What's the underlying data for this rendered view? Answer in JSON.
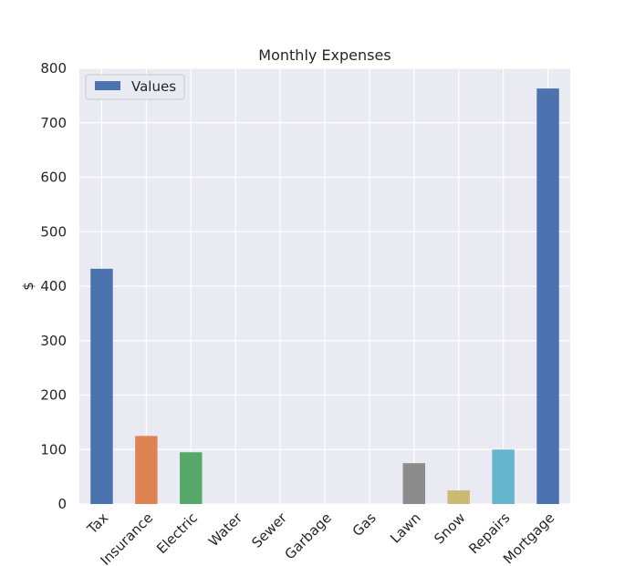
{
  "chart_data": {
    "type": "bar",
    "title": "Monthly Expenses",
    "xlabel": "",
    "ylabel": "$",
    "categories": [
      "Tax",
      "Insurance",
      "Electric",
      "Water",
      "Sewer",
      "Garbage",
      "Gas",
      "Lawn",
      "Snow",
      "Repairs",
      "Mortgage"
    ],
    "series": [
      {
        "name": "Values",
        "values": [
          432,
          125,
          95,
          0,
          0,
          0,
          0,
          75,
          25,
          100,
          763
        ]
      }
    ],
    "bar_colors": [
      "#4c72b0",
      "#dd8452",
      "#55a868",
      "#c44e52",
      "#8172b3",
      "#937860",
      "#da8bc3",
      "#8c8c8c",
      "#ccb974",
      "#64b5cd",
      "#4c72b0"
    ],
    "legend_color": "#4c72b0",
    "ylim": [
      0,
      800
    ],
    "yticks": [
      0,
      100,
      200,
      300,
      400,
      500,
      600,
      700,
      800
    ],
    "grid": true,
    "legend_position": "top-left",
    "background_color": "#eaeaf2",
    "grid_color": "#ffffff"
  }
}
